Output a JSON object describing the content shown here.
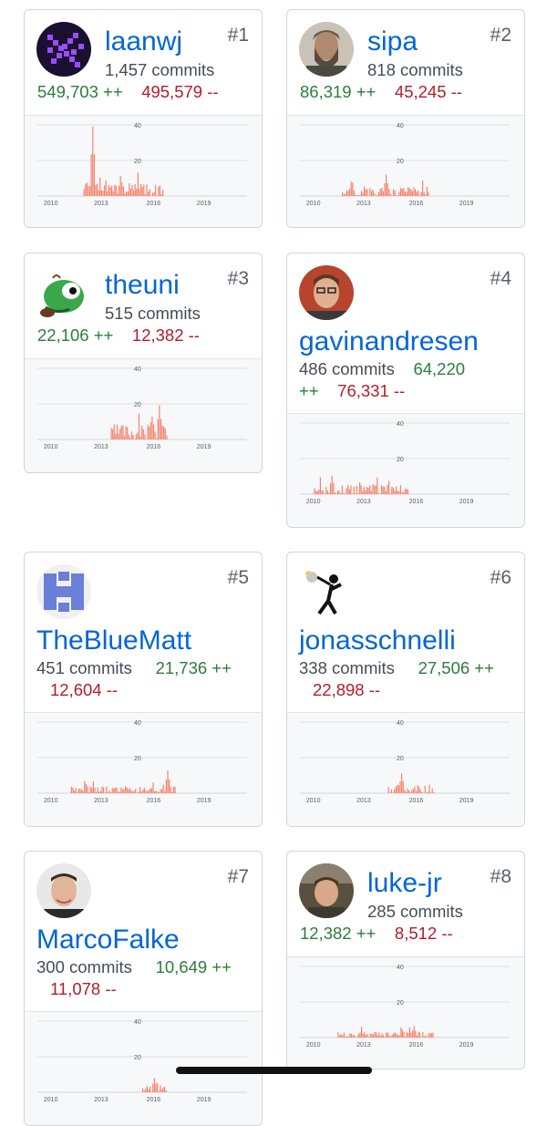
{
  "contributors": [
    {
      "rank": "#1",
      "username": "laanwj",
      "commits": "1,457 commits",
      "additions": "549,703 ++",
      "deletions": "495,579 --",
      "avatar": "pixel-icon"
    },
    {
      "rank": "#2",
      "username": "sipa",
      "commits": "818 commits",
      "additions": "86,319 ++",
      "deletions": "45,245 --",
      "avatar": "person-photo"
    },
    {
      "rank": "#3",
      "username": "theuni",
      "commits": "515 commits",
      "additions": "22,106 ++",
      "deletions": "12,382 --",
      "avatar": "turtle-icon"
    },
    {
      "rank": "#4",
      "username": "gavinandresen",
      "commits": "486 commits",
      "additions": "64,220 ++",
      "deletions": "76,331 --",
      "avatar": "person-photo"
    },
    {
      "rank": "#5",
      "username": "TheBlueMatt",
      "commits": "451 commits",
      "additions": "21,736 ++",
      "deletions": "12,604 --",
      "avatar": "identicon"
    },
    {
      "rank": "#6",
      "username": "jonasschnelli",
      "commits": "338 commits",
      "additions": "27,506 ++",
      "deletions": "22,898 --",
      "avatar": "flower-thrower-icon"
    },
    {
      "rank": "#7",
      "username": "MarcoFalke",
      "commits": "300 commits",
      "additions": "10,649 ++",
      "deletions": "11,078 --",
      "avatar": "person-photo"
    },
    {
      "rank": "#8",
      "username": "luke-jr",
      "commits": "285 commits",
      "additions": "12,382 ++",
      "deletions": "8,512 --",
      "avatar": "person-photo"
    }
  ],
  "chart": {
    "y_ticks": [
      "40",
      "20"
    ],
    "x_ticks": [
      "2010",
      "2013",
      "2016",
      "2019"
    ],
    "bar_color": "#f9826c"
  },
  "colors": {
    "link": "#0366d6",
    "additions": "#28a745",
    "deletions": "#cb2431"
  }
}
